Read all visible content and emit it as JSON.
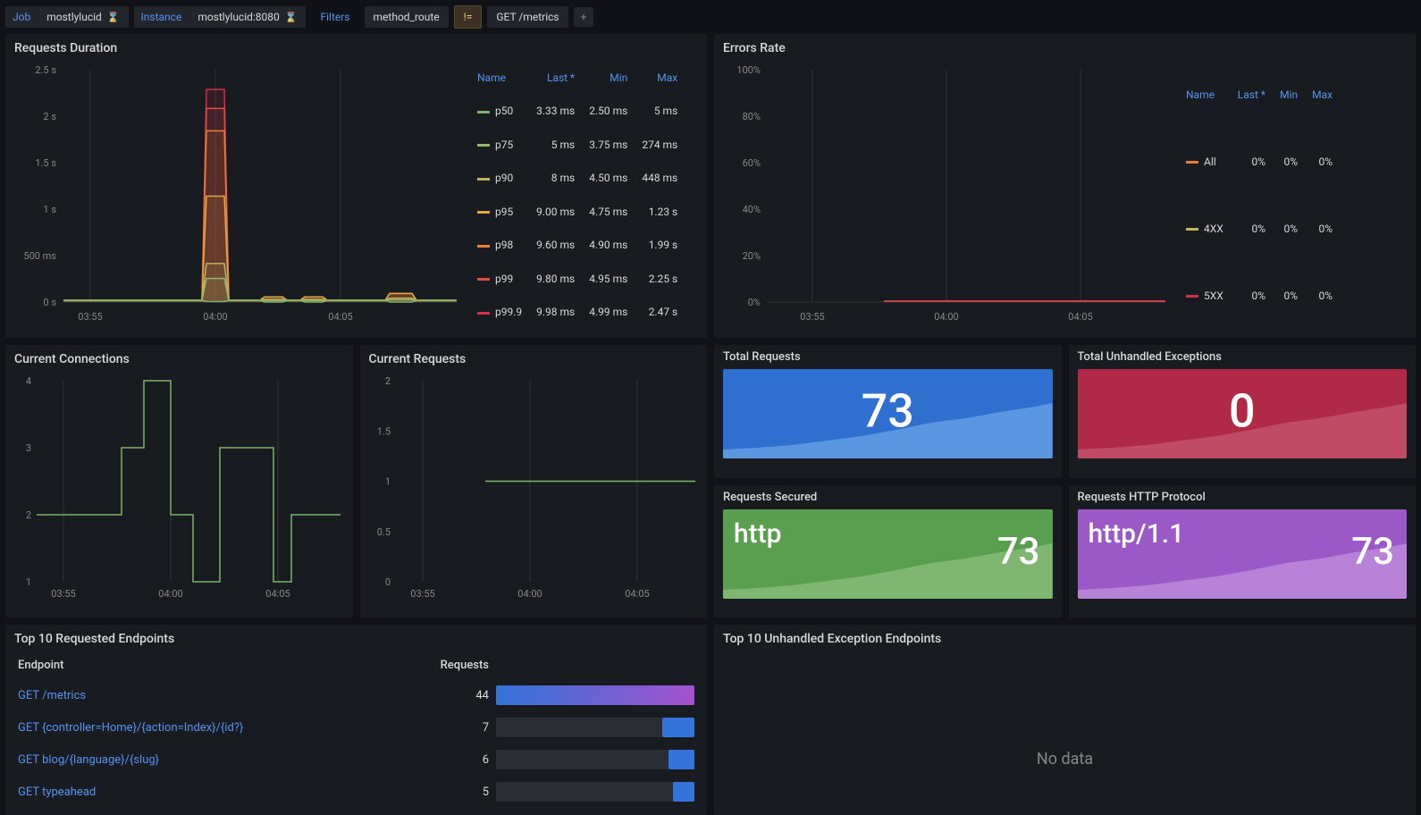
{
  "filters": {
    "job_label": "Job",
    "job_value": "mostlylucid",
    "instance_label": "Instance",
    "instance_value": "mostlylucid:8080",
    "filters_label": "Filters",
    "method_route": "method_route",
    "ne": "!=",
    "get_metrics": "GET /metrics",
    "add": "+"
  },
  "panels": {
    "requests_duration": {
      "title": "Requests Duration",
      "y_ticks": [
        "0 s",
        "500 ms",
        "1 s",
        "1.5 s",
        "2 s",
        "2.5 s"
      ],
      "x_ticks": [
        "03:55",
        "04:00",
        "04:05"
      ],
      "legend_headers": [
        "Name",
        "Last *",
        "Min",
        "Max"
      ],
      "series": [
        {
          "name": "p50",
          "color": "#7eb26d",
          "last": "3.33 ms",
          "min": "2.50 ms",
          "max": "5 ms"
        },
        {
          "name": "p75",
          "color": "#96b66b",
          "last": "5 ms",
          "min": "3.75 ms",
          "max": "274 ms"
        },
        {
          "name": "p90",
          "color": "#c0b35a",
          "last": "8 ms",
          "min": "4.50 ms",
          "max": "448 ms"
        },
        {
          "name": "p95",
          "color": "#e0a841",
          "last": "9.00 ms",
          "min": "4.75 ms",
          "max": "1.23 s"
        },
        {
          "name": "p98",
          "color": "#e67e3c",
          "last": "9.60 ms",
          "min": "4.90 ms",
          "max": "1.99 s"
        },
        {
          "name": "p99",
          "color": "#e24d42",
          "last": "9.80 ms",
          "min": "4.95 ms",
          "max": "2.25 s"
        },
        {
          "name": "p99.9",
          "color": "#d62e4d",
          "last": "9.98 ms",
          "min": "4.99 ms",
          "max": "2.47 s"
        }
      ]
    },
    "errors_rate": {
      "title": "Errors Rate",
      "y_ticks": [
        "0%",
        "20%",
        "40%",
        "60%",
        "80%",
        "100%"
      ],
      "x_ticks": [
        "03:55",
        "04:00",
        "04:05"
      ],
      "legend_headers": [
        "Name",
        "Last *",
        "Min",
        "Max"
      ],
      "series": [
        {
          "name": "All",
          "color": "#e67e3c",
          "last": "0%",
          "min": "0%",
          "max": "0%"
        },
        {
          "name": "4XX",
          "color": "#c0b35a",
          "last": "0%",
          "min": "0%",
          "max": "0%"
        },
        {
          "name": "5XX",
          "color": "#d62e4d",
          "last": "0%",
          "min": "0%",
          "max": "0%"
        }
      ]
    },
    "current_connections": {
      "title": "Current Connections",
      "y_ticks": [
        "1",
        "2",
        "3",
        "4"
      ],
      "x_ticks": [
        "03:55",
        "04:00",
        "04:05"
      ],
      "color": "#7eb26d"
    },
    "current_requests": {
      "title": "Current Requests",
      "y_ticks": [
        "0",
        "0.5",
        "1",
        "1.5",
        "2"
      ],
      "x_ticks": [
        "03:55",
        "04:00",
        "04:05"
      ],
      "color": "#7eb26d"
    },
    "total_requests": {
      "title": "Total Requests",
      "value": "73",
      "bg": "#2f6fd0",
      "spark_color": "#6da7e8"
    },
    "total_exceptions": {
      "title": "Total Unhandled Exceptions",
      "value": "0",
      "bg": "#b02a48",
      "spark_color": "#c85a72"
    },
    "requests_secured": {
      "title": "Requests Secured",
      "label": "http",
      "value": "73",
      "bg": "#5a9e4f",
      "spark_color": "#8fc081"
    },
    "requests_protocol": {
      "title": "Requests HTTP Protocol",
      "label": "http/1.1",
      "value": "73",
      "bg": "#9b59c7",
      "spark_color": "#c394de"
    },
    "top_endpoints": {
      "title": "Top 10 Requested Endpoints",
      "headers": [
        "Endpoint",
        "Requests"
      ],
      "rows": [
        {
          "endpoint": "GET /metrics",
          "requests": "44",
          "pct": 100,
          "gradient": true
        },
        {
          "endpoint": "GET {controller=Home}/{action=Index}/{id?}",
          "requests": "7",
          "pct": 16
        },
        {
          "endpoint": "GET blog/{language}/{slug}",
          "requests": "6",
          "pct": 13
        },
        {
          "endpoint": "GET typeahead",
          "requests": "5",
          "pct": 11
        }
      ]
    },
    "top_exceptions": {
      "title": "Top 10 Unhandled Exception Endpoints",
      "no_data": "No data"
    }
  }
}
